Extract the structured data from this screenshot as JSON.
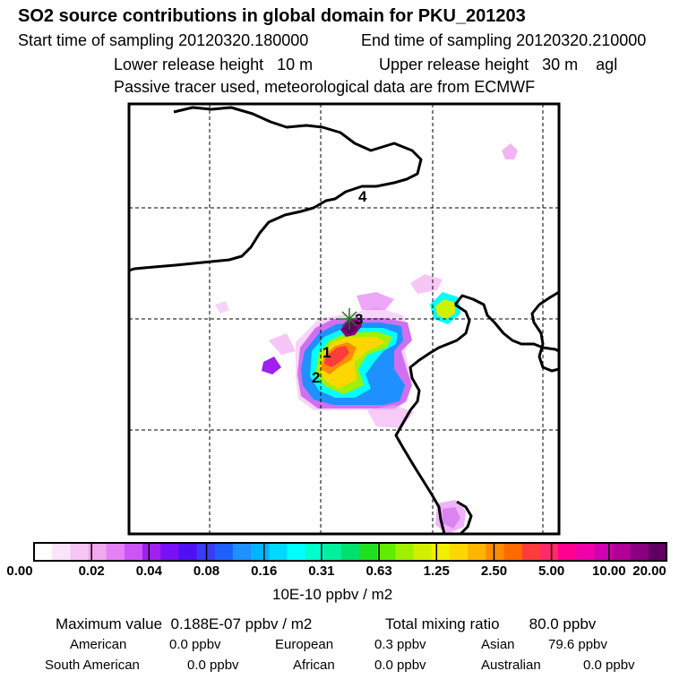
{
  "header": {
    "title": "SO2 source contributions in global domain for PKU_201203",
    "start_label": "Start time of sampling",
    "start_value": "20120320.180000",
    "end_label": "End time of sampling",
    "end_value": "20120320.210000",
    "lower_label": "Lower release height",
    "lower_value": "10 m",
    "upper_label": "Upper release height",
    "upper_value": "30 m",
    "height_ref": "agl",
    "note": "Passive tracer used, meteorological data are from ECMWF"
  },
  "map": {
    "labels": [
      "1",
      "2",
      "3",
      "4"
    ],
    "marker": "release-site-star"
  },
  "colorbar": {
    "ticks": [
      "0.00",
      "0.02",
      "0.04",
      "0.08",
      "0.16",
      "0.31",
      "0.63",
      "1.25",
      "2.50",
      "5.00",
      "10.00",
      "20.00"
    ],
    "colors": [
      "#ffffff",
      "#fbe3fb",
      "#f6c6f6",
      "#f0a8f0",
      "#e680f5",
      "#cc55f5",
      "#a020f0",
      "#7a10f5",
      "#5010f5",
      "#3a3af7",
      "#1e60ff",
      "#1e90ff",
      "#00b4ff",
      "#00d8ff",
      "#00ffff",
      "#00ffcc",
      "#00f0a0",
      "#00e070",
      "#20e020",
      "#60ee00",
      "#a0f000",
      "#d0f000",
      "#f0f000",
      "#ffd700",
      "#ffb400",
      "#ff8c00",
      "#ff6a00",
      "#ff3c3c",
      "#ff2a6a",
      "#ff0090",
      "#f000a8",
      "#d000b0",
      "#b00098",
      "#8a0080",
      "#600060"
    ],
    "units": "10E-10 ppbv / m2"
  },
  "summary": {
    "max_label": "Maximum value",
    "max_value": "0.188E-07 ppbv / m2",
    "total_label": "Total mixing ratio",
    "total_value": "80.0 ppbv",
    "regions": [
      {
        "name": "American",
        "value": "0.0 ppbv"
      },
      {
        "name": "European",
        "value": "0.3 ppbv"
      },
      {
        "name": "Asian",
        "value": "79.6 ppbv"
      },
      {
        "name": "South American",
        "value": "0.0 ppbv"
      },
      {
        "name": "African",
        "value": "0.0 ppbv"
      },
      {
        "name": "Australian",
        "value": "0.0 ppbv"
      }
    ]
  }
}
